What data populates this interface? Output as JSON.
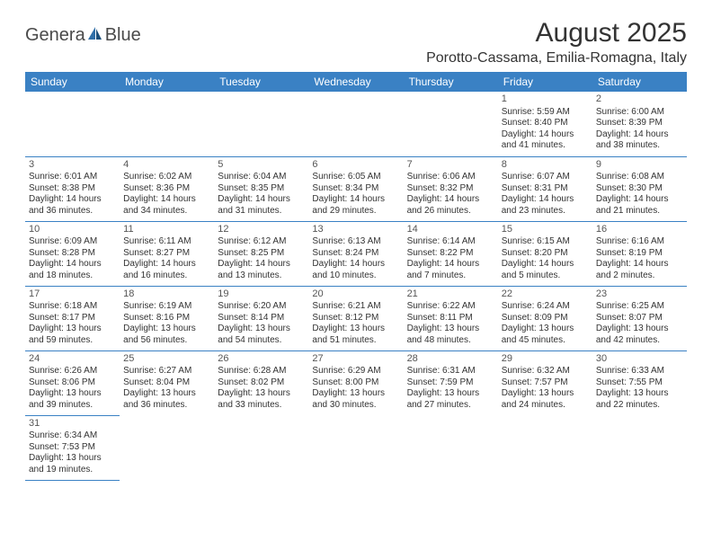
{
  "logo": {
    "part1": "Genera",
    "part2": "Blue"
  },
  "title": "August 2025",
  "location": "Porotto-Cassama, Emilia-Romagna, Italy",
  "colors": {
    "header_bg": "#3a81c4",
    "header_text": "#ffffff",
    "border": "#3a81c4",
    "text": "#333333",
    "logo_gray": "#4a4a4a",
    "logo_blue": "#2f6fa8",
    "page_bg": "#ffffff"
  },
  "day_headers": [
    "Sunday",
    "Monday",
    "Tuesday",
    "Wednesday",
    "Thursday",
    "Friday",
    "Saturday"
  ],
  "weeks": [
    [
      null,
      null,
      null,
      null,
      null,
      {
        "n": "1",
        "sr": "Sunrise: 5:59 AM",
        "ss": "Sunset: 8:40 PM",
        "d1": "Daylight: 14 hours",
        "d2": "and 41 minutes."
      },
      {
        "n": "2",
        "sr": "Sunrise: 6:00 AM",
        "ss": "Sunset: 8:39 PM",
        "d1": "Daylight: 14 hours",
        "d2": "and 38 minutes."
      }
    ],
    [
      {
        "n": "3",
        "sr": "Sunrise: 6:01 AM",
        "ss": "Sunset: 8:38 PM",
        "d1": "Daylight: 14 hours",
        "d2": "and 36 minutes."
      },
      {
        "n": "4",
        "sr": "Sunrise: 6:02 AM",
        "ss": "Sunset: 8:36 PM",
        "d1": "Daylight: 14 hours",
        "d2": "and 34 minutes."
      },
      {
        "n": "5",
        "sr": "Sunrise: 6:04 AM",
        "ss": "Sunset: 8:35 PM",
        "d1": "Daylight: 14 hours",
        "d2": "and 31 minutes."
      },
      {
        "n": "6",
        "sr": "Sunrise: 6:05 AM",
        "ss": "Sunset: 8:34 PM",
        "d1": "Daylight: 14 hours",
        "d2": "and 29 minutes."
      },
      {
        "n": "7",
        "sr": "Sunrise: 6:06 AM",
        "ss": "Sunset: 8:32 PM",
        "d1": "Daylight: 14 hours",
        "d2": "and 26 minutes."
      },
      {
        "n": "8",
        "sr": "Sunrise: 6:07 AM",
        "ss": "Sunset: 8:31 PM",
        "d1": "Daylight: 14 hours",
        "d2": "and 23 minutes."
      },
      {
        "n": "9",
        "sr": "Sunrise: 6:08 AM",
        "ss": "Sunset: 8:30 PM",
        "d1": "Daylight: 14 hours",
        "d2": "and 21 minutes."
      }
    ],
    [
      {
        "n": "10",
        "sr": "Sunrise: 6:09 AM",
        "ss": "Sunset: 8:28 PM",
        "d1": "Daylight: 14 hours",
        "d2": "and 18 minutes."
      },
      {
        "n": "11",
        "sr": "Sunrise: 6:11 AM",
        "ss": "Sunset: 8:27 PM",
        "d1": "Daylight: 14 hours",
        "d2": "and 16 minutes."
      },
      {
        "n": "12",
        "sr": "Sunrise: 6:12 AM",
        "ss": "Sunset: 8:25 PM",
        "d1": "Daylight: 14 hours",
        "d2": "and 13 minutes."
      },
      {
        "n": "13",
        "sr": "Sunrise: 6:13 AM",
        "ss": "Sunset: 8:24 PM",
        "d1": "Daylight: 14 hours",
        "d2": "and 10 minutes."
      },
      {
        "n": "14",
        "sr": "Sunrise: 6:14 AM",
        "ss": "Sunset: 8:22 PM",
        "d1": "Daylight: 14 hours",
        "d2": "and 7 minutes."
      },
      {
        "n": "15",
        "sr": "Sunrise: 6:15 AM",
        "ss": "Sunset: 8:20 PM",
        "d1": "Daylight: 14 hours",
        "d2": "and 5 minutes."
      },
      {
        "n": "16",
        "sr": "Sunrise: 6:16 AM",
        "ss": "Sunset: 8:19 PM",
        "d1": "Daylight: 14 hours",
        "d2": "and 2 minutes."
      }
    ],
    [
      {
        "n": "17",
        "sr": "Sunrise: 6:18 AM",
        "ss": "Sunset: 8:17 PM",
        "d1": "Daylight: 13 hours",
        "d2": "and 59 minutes."
      },
      {
        "n": "18",
        "sr": "Sunrise: 6:19 AM",
        "ss": "Sunset: 8:16 PM",
        "d1": "Daylight: 13 hours",
        "d2": "and 56 minutes."
      },
      {
        "n": "19",
        "sr": "Sunrise: 6:20 AM",
        "ss": "Sunset: 8:14 PM",
        "d1": "Daylight: 13 hours",
        "d2": "and 54 minutes."
      },
      {
        "n": "20",
        "sr": "Sunrise: 6:21 AM",
        "ss": "Sunset: 8:12 PM",
        "d1": "Daylight: 13 hours",
        "d2": "and 51 minutes."
      },
      {
        "n": "21",
        "sr": "Sunrise: 6:22 AM",
        "ss": "Sunset: 8:11 PM",
        "d1": "Daylight: 13 hours",
        "d2": "and 48 minutes."
      },
      {
        "n": "22",
        "sr": "Sunrise: 6:24 AM",
        "ss": "Sunset: 8:09 PM",
        "d1": "Daylight: 13 hours",
        "d2": "and 45 minutes."
      },
      {
        "n": "23",
        "sr": "Sunrise: 6:25 AM",
        "ss": "Sunset: 8:07 PM",
        "d1": "Daylight: 13 hours",
        "d2": "and 42 minutes."
      }
    ],
    [
      {
        "n": "24",
        "sr": "Sunrise: 6:26 AM",
        "ss": "Sunset: 8:06 PM",
        "d1": "Daylight: 13 hours",
        "d2": "and 39 minutes."
      },
      {
        "n": "25",
        "sr": "Sunrise: 6:27 AM",
        "ss": "Sunset: 8:04 PM",
        "d1": "Daylight: 13 hours",
        "d2": "and 36 minutes."
      },
      {
        "n": "26",
        "sr": "Sunrise: 6:28 AM",
        "ss": "Sunset: 8:02 PM",
        "d1": "Daylight: 13 hours",
        "d2": "and 33 minutes."
      },
      {
        "n": "27",
        "sr": "Sunrise: 6:29 AM",
        "ss": "Sunset: 8:00 PM",
        "d1": "Daylight: 13 hours",
        "d2": "and 30 minutes."
      },
      {
        "n": "28",
        "sr": "Sunrise: 6:31 AM",
        "ss": "Sunset: 7:59 PM",
        "d1": "Daylight: 13 hours",
        "d2": "and 27 minutes."
      },
      {
        "n": "29",
        "sr": "Sunrise: 6:32 AM",
        "ss": "Sunset: 7:57 PM",
        "d1": "Daylight: 13 hours",
        "d2": "and 24 minutes."
      },
      {
        "n": "30",
        "sr": "Sunrise: 6:33 AM",
        "ss": "Sunset: 7:55 PM",
        "d1": "Daylight: 13 hours",
        "d2": "and 22 minutes."
      }
    ],
    [
      {
        "n": "31",
        "sr": "Sunrise: 6:34 AM",
        "ss": "Sunset: 7:53 PM",
        "d1": "Daylight: 13 hours",
        "d2": "and 19 minutes."
      },
      null,
      null,
      null,
      null,
      null,
      null
    ]
  ]
}
